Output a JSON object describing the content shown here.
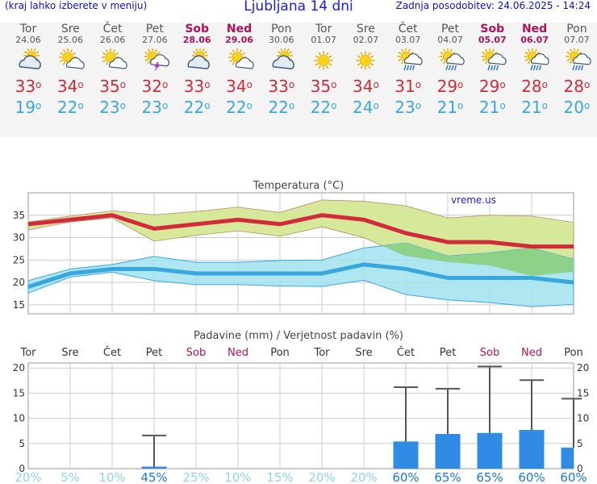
{
  "header": {
    "left_note": "(kraj lahko izberete v meniju)",
    "title": "Ljubljana 14 dni",
    "last_update": "Zadnja posodobitev: 24.06.2025 - 14:24"
  },
  "days": [
    {
      "name": "Tor",
      "date": "24.06",
      "weekend": false,
      "icon": "partly-cloudy-icon",
      "tmax": "33",
      "tmin": "19"
    },
    {
      "name": "Sre",
      "date": "25.06",
      "weekend": false,
      "icon": "sun-cloud-icon",
      "tmax": "34",
      "tmin": "22"
    },
    {
      "name": "Čet",
      "date": "26.06",
      "weekend": false,
      "icon": "sun-cloud-icon",
      "tmax": "35",
      "tmin": "23"
    },
    {
      "name": "Pet",
      "date": "27.06",
      "weekend": false,
      "icon": "thunderstorm-icon",
      "tmax": "32",
      "tmin": "23"
    },
    {
      "name": "Sob",
      "date": "28.06",
      "weekend": true,
      "icon": "partly-cloudy-icon",
      "tmax": "33",
      "tmin": "22"
    },
    {
      "name": "Ned",
      "date": "29.06",
      "weekend": true,
      "icon": "sun-cloud-icon",
      "tmax": "34",
      "tmin": "22"
    },
    {
      "name": "Pon",
      "date": "30.06",
      "weekend": false,
      "icon": "partly-cloudy-icon",
      "tmax": "33",
      "tmin": "22"
    },
    {
      "name": "Tor",
      "date": "01.07",
      "weekend": false,
      "icon": "sun-icon",
      "tmax": "35",
      "tmin": "22"
    },
    {
      "name": "Sre",
      "date": "02.07",
      "weekend": false,
      "icon": "sun-icon",
      "tmax": "34",
      "tmin": "24"
    },
    {
      "name": "Čet",
      "date": "03.07",
      "weekend": false,
      "icon": "sun-rain-icon",
      "tmax": "31",
      "tmin": "23"
    },
    {
      "name": "Pet",
      "date": "04.07",
      "weekend": false,
      "icon": "sun-rain-icon",
      "tmax": "29",
      "tmin": "21"
    },
    {
      "name": "Sob",
      "date": "05.07",
      "weekend": true,
      "icon": "sun-rain-icon",
      "tmax": "29",
      "tmin": "21"
    },
    {
      "name": "Ned",
      "date": "06.07",
      "weekend": true,
      "icon": "sun-rain-icon",
      "tmax": "28",
      "tmin": "21"
    },
    {
      "name": "Pon",
      "date": "07.07",
      "weekend": false,
      "icon": "sun-rain-icon",
      "tmax": "28",
      "tmin": "20"
    }
  ],
  "degree_symbol": "o",
  "colors": {
    "max_line": "#d32a3a",
    "min_line": "#3aa6de",
    "max_band": "#d6e89a",
    "min_band": "#a0e2ee",
    "overlap_band": "#8ed28a",
    "weekend": "#b0105a",
    "precip_bar": "#2f8be4",
    "prob_text": "#1a78d8",
    "prob_text_low": "#8fd4ee"
  },
  "chart_data": [
    {
      "type": "line",
      "title": "Temperatura (°C)",
      "watermark": "vreme.us",
      "ylim": [
        13,
        40
      ],
      "yticks": [
        15,
        20,
        25,
        30,
        35
      ],
      "grid": true,
      "x": [
        "Tor",
        "Sre",
        "Čet",
        "Pet",
        "Sob",
        "Ned",
        "Pon",
        "Tor",
        "Sre",
        "Čet",
        "Pet",
        "Sob",
        "Ned",
        "Pon"
      ],
      "series": [
        {
          "values": [
            33,
            34,
            35,
            32,
            33,
            34,
            33,
            35,
            34,
            31,
            29,
            29,
            28,
            28
          ]
        },
        {
          "values": [
            19,
            22,
            23,
            23,
            22,
            22,
            22,
            22,
            24,
            23,
            21,
            21,
            21,
            20
          ]
        }
      ],
      "bands": [
        {
          "upper": [
            33.5,
            34.8,
            36,
            35.1,
            35.8,
            36.8,
            35.6,
            38.4,
            38.1,
            37.1,
            34.4,
            35,
            34.8,
            33.4
          ],
          "lower": [
            31.7,
            33.5,
            34.4,
            29.2,
            30.5,
            31.5,
            30.3,
            32.4,
            30,
            25.9,
            24.6,
            23.8,
            21.5,
            22.4
          ]
        },
        {
          "upper": [
            20.4,
            23,
            24,
            25.8,
            24.5,
            24.5,
            24.9,
            25,
            27.7,
            28.8,
            25.9,
            26.6,
            27.7,
            25.2
          ],
          "lower": [
            17.6,
            21.2,
            22.3,
            20.4,
            19.5,
            19.5,
            19.2,
            19.1,
            20.5,
            17.3,
            16.1,
            15.5,
            14.6,
            15.1
          ]
        }
      ]
    },
    {
      "type": "bar",
      "title": "Padavine (mm) / Verjetnost padavin (%)",
      "ylim": [
        0,
        21
      ],
      "yticks": [
        0,
        5,
        10,
        15,
        20
      ],
      "grid": true,
      "categories": [
        "Tor",
        "Sre",
        "Čet",
        "Pet",
        "Sob",
        "Ned",
        "Pon",
        "Tor",
        "Sre",
        "Čet",
        "Pet",
        "Sob",
        "Ned",
        "Pon"
      ],
      "values": [
        0,
        0,
        0,
        0.4,
        0,
        0,
        0,
        0,
        0,
        5.4,
        6.9,
        7.1,
        7.7,
        4.2
      ],
      "error_max": [
        0,
        0,
        0,
        6.6,
        0,
        0,
        0,
        0,
        0,
        16.2,
        15.9,
        20.3,
        17.6,
        13.9
      ],
      "probability": [
        "20%",
        "5%",
        "10%",
        "45%",
        "25%",
        "10%",
        "15%",
        "20%",
        "20%",
        "60%",
        "65%",
        "65%",
        "60%",
        "60%"
      ]
    }
  ]
}
